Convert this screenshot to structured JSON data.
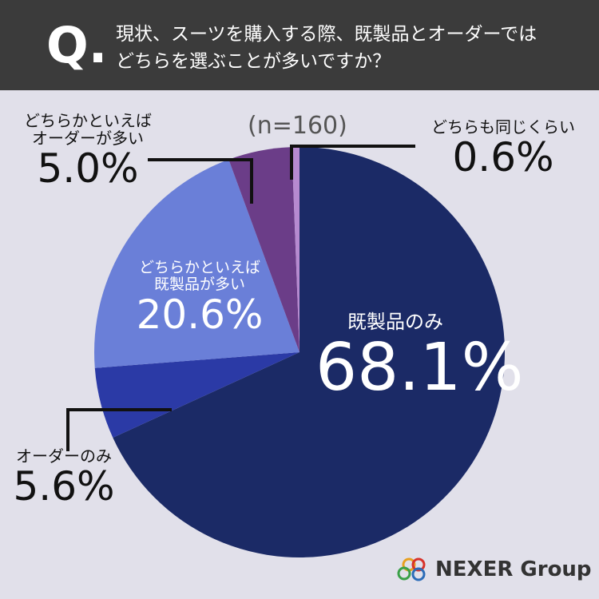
{
  "badge": "Q.",
  "chart_data": {
    "type": "pie",
    "title": "現状、スーツを購入する際、既製品とオーダーでは\nどちらを選ぶことが多いですか？",
    "note": "(n=160)",
    "categories": [
      "既製品のみ",
      "オーダーのみ",
      "どちらかといえば\n既製品が多い",
      "どちらかといえば\nオーダーが多い",
      "どちらも同じくらい"
    ],
    "values": [
      68.1,
      5.6,
      20.6,
      5.0,
      0.6
    ],
    "value_labels": [
      "68.1%",
      "5.6%",
      "20.6%",
      "5.0%",
      "0.6%"
    ],
    "colors": [
      "#1b2a66",
      "#2b3aa6",
      "#6a7fd8",
      "#6b3d88",
      "#b68ad0"
    ]
  },
  "brand": "NEXER Group"
}
